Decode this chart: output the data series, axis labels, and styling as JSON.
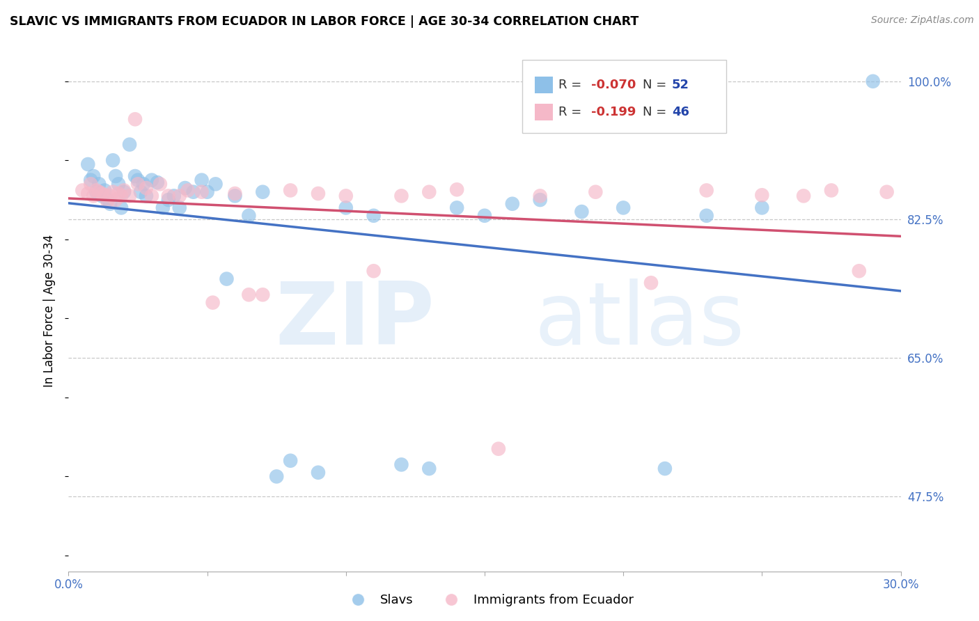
{
  "title": "SLAVIC VS IMMIGRANTS FROM ECUADOR IN LABOR FORCE | AGE 30-34 CORRELATION CHART",
  "source": "Source: ZipAtlas.com",
  "ylabel": "In Labor Force | Age 30-34",
  "xlim": [
    0.0,
    0.3
  ],
  "ylim": [
    0.38,
    1.04
  ],
  "ytick_positions": [
    0.475,
    0.65,
    0.825,
    1.0
  ],
  "ytick_labels": [
    "47.5%",
    "65.0%",
    "82.5%",
    "100.0%"
  ],
  "blue_color": "#8ec0e8",
  "pink_color": "#f5b8c8",
  "blue_line_color": "#4472c4",
  "pink_line_color": "#d05070",
  "blue_legend_label": "Slavs",
  "pink_legend_label": "Immigrants from Ecuador",
  "slavs_x": [
    0.007,
    0.008,
    0.009,
    0.01,
    0.011,
    0.012,
    0.013,
    0.014,
    0.015,
    0.016,
    0.017,
    0.018,
    0.019,
    0.02,
    0.022,
    0.024,
    0.025,
    0.026,
    0.027,
    0.028,
    0.03,
    0.032,
    0.034,
    0.036,
    0.038,
    0.04,
    0.042,
    0.045,
    0.048,
    0.05,
    0.053,
    0.057,
    0.06,
    0.065,
    0.07,
    0.075,
    0.08,
    0.09,
    0.1,
    0.11,
    0.12,
    0.13,
    0.14,
    0.15,
    0.16,
    0.17,
    0.185,
    0.2,
    0.215,
    0.23,
    0.25,
    0.29
  ],
  "slavs_y": [
    0.895,
    0.875,
    0.88,
    0.86,
    0.87,
    0.855,
    0.862,
    0.85,
    0.845,
    0.9,
    0.88,
    0.87,
    0.84,
    0.86,
    0.92,
    0.88,
    0.875,
    0.86,
    0.87,
    0.855,
    0.875,
    0.872,
    0.84,
    0.85,
    0.855,
    0.84,
    0.865,
    0.86,
    0.875,
    0.86,
    0.87,
    0.75,
    0.855,
    0.83,
    0.86,
    0.5,
    0.52,
    0.505,
    0.84,
    0.83,
    0.515,
    0.51,
    0.84,
    0.83,
    0.845,
    0.85,
    0.835,
    0.84,
    0.51,
    0.83,
    0.84,
    1.0
  ],
  "ecuador_x": [
    0.005,
    0.007,
    0.008,
    0.009,
    0.01,
    0.011,
    0.012,
    0.013,
    0.014,
    0.015,
    0.016,
    0.017,
    0.018,
    0.019,
    0.02,
    0.022,
    0.024,
    0.025,
    0.028,
    0.03,
    0.033,
    0.036,
    0.04,
    0.043,
    0.048,
    0.052,
    0.06,
    0.065,
    0.07,
    0.08,
    0.09,
    0.1,
    0.11,
    0.12,
    0.13,
    0.14,
    0.155,
    0.17,
    0.19,
    0.21,
    0.23,
    0.25,
    0.265,
    0.275,
    0.285,
    0.295
  ],
  "ecuador_y": [
    0.862,
    0.858,
    0.87,
    0.855,
    0.862,
    0.86,
    0.858,
    0.856,
    0.848,
    0.855,
    0.86,
    0.85,
    0.858,
    0.855,
    0.862,
    0.855,
    0.952,
    0.87,
    0.865,
    0.855,
    0.87,
    0.855,
    0.855,
    0.862,
    0.86,
    0.72,
    0.858,
    0.73,
    0.73,
    0.862,
    0.858,
    0.855,
    0.76,
    0.855,
    0.86,
    0.863,
    0.535,
    0.855,
    0.86,
    0.745,
    0.862,
    0.856,
    0.855,
    0.862,
    0.76,
    0.86
  ]
}
